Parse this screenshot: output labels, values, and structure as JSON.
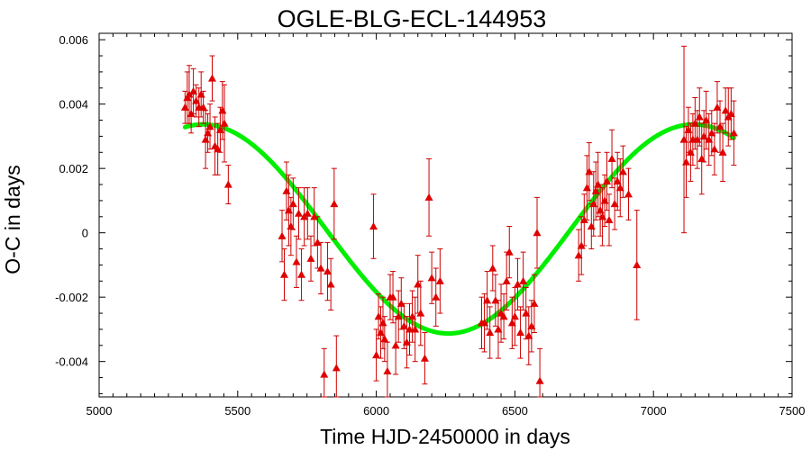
{
  "chart_data": {
    "type": "scatter",
    "title": "OGLE-BLG-ECL-144953",
    "xlabel": "Time HJD-2450000 in days",
    "ylabel": "O-C in days",
    "xlim": [
      5000,
      7500
    ],
    "ylim": [
      -0.0051,
      0.0062
    ],
    "x_ticks": [
      5000,
      5500,
      6000,
      6500,
      7000,
      7500
    ],
    "x_tick_labels": [
      "5000",
      "5500",
      "6000",
      "6500",
      "7000",
      "7500"
    ],
    "y_ticks": [
      -0.004,
      -0.002,
      0,
      0.002,
      0.004,
      0.006
    ],
    "y_tick_labels": [
      "-0.004",
      "-0.002",
      "0",
      "0.002",
      "0.004",
      "0.006"
    ],
    "grid": false,
    "colors": {
      "points": "#e00000",
      "errorbars": "#cc0000",
      "fit": "#00ee00",
      "axes": "#000000"
    },
    "series": [
      {
        "kind": "points-with-errorbars",
        "marker": "triangle",
        "points": [
          {
            "x": 5310,
            "y": 0.0039,
            "err": 0.0005
          },
          {
            "x": 5318,
            "y": 0.0042,
            "err": 0.0008
          },
          {
            "x": 5325,
            "y": 0.0043,
            "err": 0.0009
          },
          {
            "x": 5332,
            "y": 0.0037,
            "err": 0.0006
          },
          {
            "x": 5340,
            "y": 0.0044,
            "err": 0.0007
          },
          {
            "x": 5350,
            "y": 0.0041,
            "err": 0.0005
          },
          {
            "x": 5360,
            "y": 0.0039,
            "err": 0.0006
          },
          {
            "x": 5368,
            "y": 0.0043,
            "err": 0.0007
          },
          {
            "x": 5376,
            "y": 0.0039,
            "err": 0.0005
          },
          {
            "x": 5384,
            "y": 0.0029,
            "err": 0.0009
          },
          {
            "x": 5392,
            "y": 0.0031,
            "err": 0.0006
          },
          {
            "x": 5400,
            "y": 0.0033,
            "err": 0.0007
          },
          {
            "x": 5408,
            "y": 0.0048,
            "err": 0.0007
          },
          {
            "x": 5418,
            "y": 0.0027,
            "err": 0.0009
          },
          {
            "x": 5428,
            "y": 0.0026,
            "err": 0.0008
          },
          {
            "x": 5437,
            "y": 0.0032,
            "err": 0.0007
          },
          {
            "x": 5445,
            "y": 0.0038,
            "err": 0.0009
          },
          {
            "x": 5452,
            "y": 0.0034,
            "err": 0.0012
          },
          {
            "x": 5466,
            "y": 0.0015,
            "err": 0.0006
          },
          {
            "x": 5660,
            "y": -0.0001,
            "err": 0.0008
          },
          {
            "x": 5668,
            "y": -0.0013,
            "err": 0.0008
          },
          {
            "x": 5676,
            "y": 0.0013,
            "err": 0.0009
          },
          {
            "x": 5684,
            "y": 0.0007,
            "err": 0.0011
          },
          {
            "x": 5692,
            "y": 0.0002,
            "err": 0.0009
          },
          {
            "x": 5700,
            "y": 0.0009,
            "err": 0.0008
          },
          {
            "x": 5712,
            "y": -0.0009,
            "err": 0.0008
          },
          {
            "x": 5720,
            "y": 0.0006,
            "err": 0.0008
          },
          {
            "x": 5730,
            "y": -0.0013,
            "err": 0.0008
          },
          {
            "x": 5740,
            "y": 0.0005,
            "err": 0.0009
          },
          {
            "x": 5752,
            "y": 0.0006,
            "err": 0.0008
          },
          {
            "x": 5764,
            "y": -0.0008,
            "err": 0.0007
          },
          {
            "x": 5776,
            "y": 0.0005,
            "err": 0.0009
          },
          {
            "x": 5788,
            "y": -0.0003,
            "err": 0.0008
          },
          {
            "x": 5800,
            "y": -0.0011,
            "err": 0.0008
          },
          {
            "x": 5812,
            "y": -0.0044,
            "err": 0.0008
          },
          {
            "x": 5824,
            "y": -0.0012,
            "err": 0.0009
          },
          {
            "x": 5836,
            "y": -0.0016,
            "err": 0.0008
          },
          {
            "x": 5848,
            "y": 0.0009,
            "err": 0.0011
          },
          {
            "x": 5856,
            "y": -0.0042,
            "err": 0.001
          },
          {
            "x": 5990,
            "y": 0.0002,
            "err": 0.001
          },
          {
            "x": 6000,
            "y": -0.0038,
            "err": 0.0008
          },
          {
            "x": 6008,
            "y": -0.0026,
            "err": 0.0007
          },
          {
            "x": 6016,
            "y": -0.0031,
            "err": 0.0008
          },
          {
            "x": 6024,
            "y": -0.0028,
            "err": 0.0008
          },
          {
            "x": 6030,
            "y": -0.0033,
            "err": 0.0007
          },
          {
            "x": 6040,
            "y": -0.0043,
            "err": 0.0009
          },
          {
            "x": 6050,
            "y": -0.002,
            "err": 0.0007
          },
          {
            "x": 6060,
            "y": -0.002,
            "err": 0.0008
          },
          {
            "x": 6070,
            "y": -0.0035,
            "err": 0.0009
          },
          {
            "x": 6080,
            "y": -0.0026,
            "err": 0.0008
          },
          {
            "x": 6090,
            "y": -0.0022,
            "err": 0.0008
          },
          {
            "x": 6100,
            "y": -0.0029,
            "err": 0.0007
          },
          {
            "x": 6110,
            "y": -0.0034,
            "err": 0.0008
          },
          {
            "x": 6120,
            "y": -0.003,
            "err": 0.0008
          },
          {
            "x": 6130,
            "y": -0.0026,
            "err": 0.0008
          },
          {
            "x": 6140,
            "y": -0.003,
            "err": 0.001
          },
          {
            "x": 6150,
            "y": -0.0016,
            "err": 0.0009
          },
          {
            "x": 6160,
            "y": -0.0025,
            "err": 0.001
          },
          {
            "x": 6175,
            "y": -0.0039,
            "err": 0.0008
          },
          {
            "x": 6190,
            "y": 0.0011,
            "err": 0.0012
          },
          {
            "x": 6200,
            "y": -0.0014,
            "err": 0.0008
          },
          {
            "x": 6215,
            "y": -0.002,
            "err": 0.0009
          },
          {
            "x": 6230,
            "y": -0.0015,
            "err": 0.001
          },
          {
            "x": 6380,
            "y": -0.0028,
            "err": 0.0008
          },
          {
            "x": 6390,
            "y": -0.0028,
            "err": 0.0009
          },
          {
            "x": 6400,
            "y": -0.0021,
            "err": 0.0009
          },
          {
            "x": 6410,
            "y": -0.0031,
            "err": 0.0008
          },
          {
            "x": 6420,
            "y": -0.0011,
            "err": 0.0007
          },
          {
            "x": 6430,
            "y": -0.0021,
            "err": 0.0008
          },
          {
            "x": 6440,
            "y": -0.003,
            "err": 0.0009
          },
          {
            "x": 6450,
            "y": -0.0025,
            "err": 0.0009
          },
          {
            "x": 6460,
            "y": -0.0026,
            "err": 0.0007
          },
          {
            "x": 6470,
            "y": -0.0015,
            "err": 0.0009
          },
          {
            "x": 6480,
            "y": -0.0006,
            "err": 0.0008
          },
          {
            "x": 6490,
            "y": -0.0028,
            "err": 0.0008
          },
          {
            "x": 6500,
            "y": -0.0026,
            "err": 0.0009
          },
          {
            "x": 6510,
            "y": -0.0016,
            "err": 0.0008
          },
          {
            "x": 6520,
            "y": -0.0031,
            "err": 0.0008
          },
          {
            "x": 6530,
            "y": -0.0015,
            "err": 0.0009
          },
          {
            "x": 6540,
            "y": -0.0025,
            "err": 0.0008
          },
          {
            "x": 6550,
            "y": -0.0032,
            "err": 0.0009
          },
          {
            "x": 6560,
            "y": -0.0029,
            "err": 0.0008
          },
          {
            "x": 6570,
            "y": -0.0022,
            "err": 0.0009
          },
          {
            "x": 6580,
            "y": 0.0,
            "err": 0.0011
          },
          {
            "x": 6590,
            "y": -0.0046,
            "err": 0.001
          },
          {
            "x": 6730,
            "y": -0.0007,
            "err": 0.0008
          },
          {
            "x": 6740,
            "y": -0.0004,
            "err": 0.0009
          },
          {
            "x": 6750,
            "y": 0.0004,
            "err": 0.0008
          },
          {
            "x": 6760,
            "y": 0.0014,
            "err": 0.001
          },
          {
            "x": 6768,
            "y": 0.0019,
            "err": 0.0009
          },
          {
            "x": 6776,
            "y": 0.0002,
            "err": 0.0007
          },
          {
            "x": 6784,
            "y": 0.0009,
            "err": 0.001
          },
          {
            "x": 6792,
            "y": 0.0013,
            "err": 0.0009
          },
          {
            "x": 6800,
            "y": 0.0015,
            "err": 0.001
          },
          {
            "x": 6808,
            "y": 0.0007,
            "err": 0.0008
          },
          {
            "x": 6816,
            "y": 0.0005,
            "err": 0.0009
          },
          {
            "x": 6824,
            "y": 0.001,
            "err": 0.0008
          },
          {
            "x": 6832,
            "y": 0.0016,
            "err": 0.0009
          },
          {
            "x": 6840,
            "y": 0.0004,
            "err": 0.0008
          },
          {
            "x": 6850,
            "y": 0.0023,
            "err": 0.0009
          },
          {
            "x": 6860,
            "y": 0.0009,
            "err": 0.0008
          },
          {
            "x": 6870,
            "y": 0.0016,
            "err": 0.0009
          },
          {
            "x": 6880,
            "y": 0.0014,
            "err": 0.0009
          },
          {
            "x": 6890,
            "y": 0.0019,
            "err": 0.0008
          },
          {
            "x": 6910,
            "y": 0.0012,
            "err": 0.0008
          },
          {
            "x": 6940,
            "y": -0.001,
            "err": 0.0017
          },
          {
            "x": 7110,
            "y": 0.0029,
            "err": 0.0029
          },
          {
            "x": 7118,
            "y": 0.0022,
            "err": 0.0011
          },
          {
            "x": 7126,
            "y": 0.0032,
            "err": 0.0007
          },
          {
            "x": 7134,
            "y": 0.0025,
            "err": 0.0009
          },
          {
            "x": 7142,
            "y": 0.0029,
            "err": 0.0008
          },
          {
            "x": 7150,
            "y": 0.0034,
            "err": 0.0008
          },
          {
            "x": 7158,
            "y": 0.0029,
            "err": 0.0009
          },
          {
            "x": 7166,
            "y": 0.0036,
            "err": 0.0009
          },
          {
            "x": 7174,
            "y": 0.0023,
            "err": 0.0011
          },
          {
            "x": 7182,
            "y": 0.003,
            "err": 0.0008
          },
          {
            "x": 7190,
            "y": 0.0035,
            "err": 0.0009
          },
          {
            "x": 7200,
            "y": 0.0029,
            "err": 0.0008
          },
          {
            "x": 7210,
            "y": 0.0031,
            "err": 0.0007
          },
          {
            "x": 7220,
            "y": 0.0026,
            "err": 0.0008
          },
          {
            "x": 7230,
            "y": 0.0039,
            "err": 0.0008
          },
          {
            "x": 7240,
            "y": 0.0033,
            "err": 0.0008
          },
          {
            "x": 7250,
            "y": 0.0025,
            "err": 0.0009
          },
          {
            "x": 7260,
            "y": 0.0038,
            "err": 0.0007
          },
          {
            "x": 7270,
            "y": 0.0036,
            "err": 0.0009
          },
          {
            "x": 7280,
            "y": 0.0037,
            "err": 0.0008
          },
          {
            "x": 7290,
            "y": 0.0031,
            "err": 0.001
          }
        ]
      },
      {
        "kind": "fit-curve",
        "x_range": [
          5310,
          7290
        ],
        "model": "sinusoid",
        "offset": 0.00012,
        "amplitude": 0.00325,
        "period": 1770,
        "phase_x": 5375,
        "phase_note": "y = offset + amplitude * cos(2*pi*(x - phase_x)/period)"
      }
    ]
  }
}
